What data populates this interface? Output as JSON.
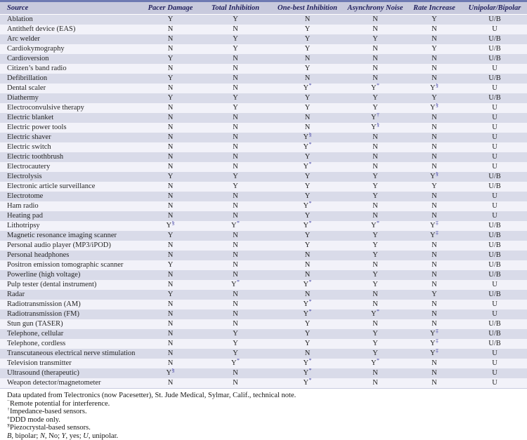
{
  "accent_colors": {
    "top_rule": "#6e7ab2",
    "header_bg": "#c8cadd",
    "header_text": "#22225e",
    "row_odd_bg": "#d9dbe9",
    "row_even_bg": "#f2f2f9",
    "superscript": "#4343a6"
  },
  "table": {
    "columns": [
      "Source",
      "Pacer Damage",
      "Total Inhibition",
      "One-best Inhibition",
      "Asynchrony Noise",
      "Rate Increase",
      "Unipolar/Bipolar"
    ],
    "rows": [
      {
        "source": "Ablation",
        "values": [
          "Y",
          "Y",
          "N",
          "N",
          "Y",
          "U/B"
        ]
      },
      {
        "source": "Antitheft device (EAS)",
        "values": [
          "N",
          "N",
          "Y",
          "N",
          "N",
          "U"
        ]
      },
      {
        "source": "Arc welder",
        "values": [
          "N",
          "Y",
          "Y",
          "Y",
          "N",
          "U/B"
        ]
      },
      {
        "source": "Cardiokymography",
        "values": [
          "N",
          "Y",
          "Y",
          "N",
          "Y",
          "U/B"
        ]
      },
      {
        "source": "Cardioversion",
        "values": [
          "Y",
          "N",
          "N",
          "N",
          "N",
          "U/B"
        ]
      },
      {
        "source": "Citizen’s band radio",
        "values": [
          "N",
          "N",
          "Y",
          "N",
          "N",
          "U"
        ]
      },
      {
        "source": "Defibrillation",
        "values": [
          "Y",
          "N",
          "N",
          "N",
          "N",
          "U/B"
        ]
      },
      {
        "source": "Dental scaler",
        "values": [
          "N",
          "N",
          "Y*",
          "Y*",
          "Y§",
          "U"
        ]
      },
      {
        "source": "Diathermy",
        "values": [
          "Y",
          "Y",
          "Y",
          "Y",
          "Y",
          "U/B"
        ]
      },
      {
        "source": "Electroconvulsive therapy",
        "values": [
          "N",
          "Y",
          "Y",
          "Y",
          "Y§",
          "U"
        ]
      },
      {
        "source": "Electric blanket",
        "values": [
          "N",
          "N",
          "N",
          "Y†",
          "N",
          "U"
        ]
      },
      {
        "source": "Electric power tools",
        "values": [
          "N",
          "N",
          "N",
          "Y§",
          "N",
          "U"
        ]
      },
      {
        "source": "Electric shaver",
        "values": [
          "N",
          "N",
          "Y§",
          "N",
          "N",
          "U"
        ]
      },
      {
        "source": "Electric switch",
        "values": [
          "N",
          "N",
          "Y*",
          "N",
          "N",
          "U"
        ]
      },
      {
        "source": "Electric toothbrush",
        "values": [
          "N",
          "N",
          "Y",
          "N",
          "N",
          "U"
        ]
      },
      {
        "source": "Electrocautery",
        "values": [
          "N",
          "N",
          "Y*",
          "N",
          "N",
          "U"
        ]
      },
      {
        "source": "Electrolysis",
        "values": [
          "Y",
          "Y",
          "Y",
          "Y",
          "Y§",
          "U/B"
        ]
      },
      {
        "source": "Electronic article surveillance",
        "values": [
          "N",
          "Y",
          "Y",
          "Y",
          "Y",
          "U/B"
        ]
      },
      {
        "source": "Electrotome",
        "values": [
          "N",
          "N",
          "Y",
          "Y",
          "N",
          "U"
        ]
      },
      {
        "source": "Ham radio",
        "values": [
          "N",
          "N",
          "Y*",
          "N",
          "N",
          "U"
        ]
      },
      {
        "source": "Heating pad",
        "values": [
          "N",
          "N",
          "Y",
          "N",
          "N",
          "U"
        ]
      },
      {
        "source": "Lithotripsy",
        "values": [
          "Y§",
          "Y*",
          "Y*",
          "Y*",
          "Y‡",
          "U/B"
        ]
      },
      {
        "source": "Magnetic resonance imaging scanner",
        "values": [
          "Y",
          "N",
          "Y",
          "Y",
          "Y‡",
          "U/B"
        ]
      },
      {
        "source": "Personal audio player (MP3/iPOD)",
        "values": [
          "N",
          "N",
          "Y",
          "Y",
          "N",
          "U/B"
        ]
      },
      {
        "source": "Personal headphones",
        "values": [
          "N",
          "N",
          "N",
          "Y",
          "N",
          "U/B"
        ]
      },
      {
        "source": "Positron emission tomographic scanner",
        "values": [
          "Y",
          "N",
          "N",
          "N",
          "N",
          "U/B"
        ]
      },
      {
        "source": "Powerline (high voltage)",
        "values": [
          "N",
          "N",
          "N",
          "Y",
          "N",
          "U/B"
        ]
      },
      {
        "source": "Pulp tester (dental instrument)",
        "values": [
          "N",
          "Y*",
          "Y*",
          "Y",
          "N",
          "U"
        ]
      },
      {
        "source": "Radar",
        "values": [
          "Y",
          "N",
          "N",
          "N",
          "Y",
          "U/B"
        ]
      },
      {
        "source": "Radiotransmission (AM)",
        "values": [
          "N",
          "N",
          "Y*",
          "N",
          "N",
          "U"
        ]
      },
      {
        "source": "Radiotransmission (FM)",
        "values": [
          "N",
          "N",
          "Y*",
          "Y*",
          "N",
          "U"
        ]
      },
      {
        "source": "Stun gun (TASER)",
        "values": [
          "N",
          "N",
          "Y",
          "N",
          "N",
          "U/B"
        ]
      },
      {
        "source": "Telephone, cellular",
        "values": [
          "N",
          "Y",
          "Y",
          "Y",
          "Y‡",
          "U/B"
        ]
      },
      {
        "source": "Telephone, cordless",
        "values": [
          "N",
          "Y",
          "Y",
          "Y",
          "Y‡",
          "U/B"
        ]
      },
      {
        "source": "Transcutaneous electrical nerve stimulation",
        "values": [
          "N",
          "Y",
          "N",
          "Y",
          "Y‡",
          "U"
        ]
      },
      {
        "source": "Television transmitter",
        "values": [
          "N",
          "Y*",
          "Y*",
          "Y*",
          "N",
          "U"
        ]
      },
      {
        "source": "Ultrasound (therapeutic)",
        "values": [
          "Y§",
          "N",
          "Y*",
          "N",
          "N",
          "U"
        ]
      },
      {
        "source": "Weapon detector/magnetometer",
        "values": [
          "N",
          "N",
          "Y*",
          "N",
          "N",
          "U"
        ]
      }
    ]
  },
  "footer": {
    "source_note": "Data updated from Telectronics (now Pacesetter), St. Jude Medical, Sylmar, Calif., technical note.",
    "footnotes": [
      {
        "mark": "*",
        "text": "Remote potential for interference."
      },
      {
        "mark": "†",
        "text": "Impedance-based sensors."
      },
      {
        "mark": "‡",
        "text": "DDD mode only."
      },
      {
        "mark": "§",
        "text": "Piezocrystal-based sensors."
      }
    ],
    "abbreviations": [
      {
        "t": "B",
        "i": true
      },
      {
        "t": ", bipolar; ",
        "i": false
      },
      {
        "t": "N",
        "i": true
      },
      {
        "t": ", No; ",
        "i": false
      },
      {
        "t": "Y",
        "i": true
      },
      {
        "t": ", yes; ",
        "i": false
      },
      {
        "t": "U",
        "i": true
      },
      {
        "t": ", unipolar.",
        "i": false
      }
    ]
  }
}
